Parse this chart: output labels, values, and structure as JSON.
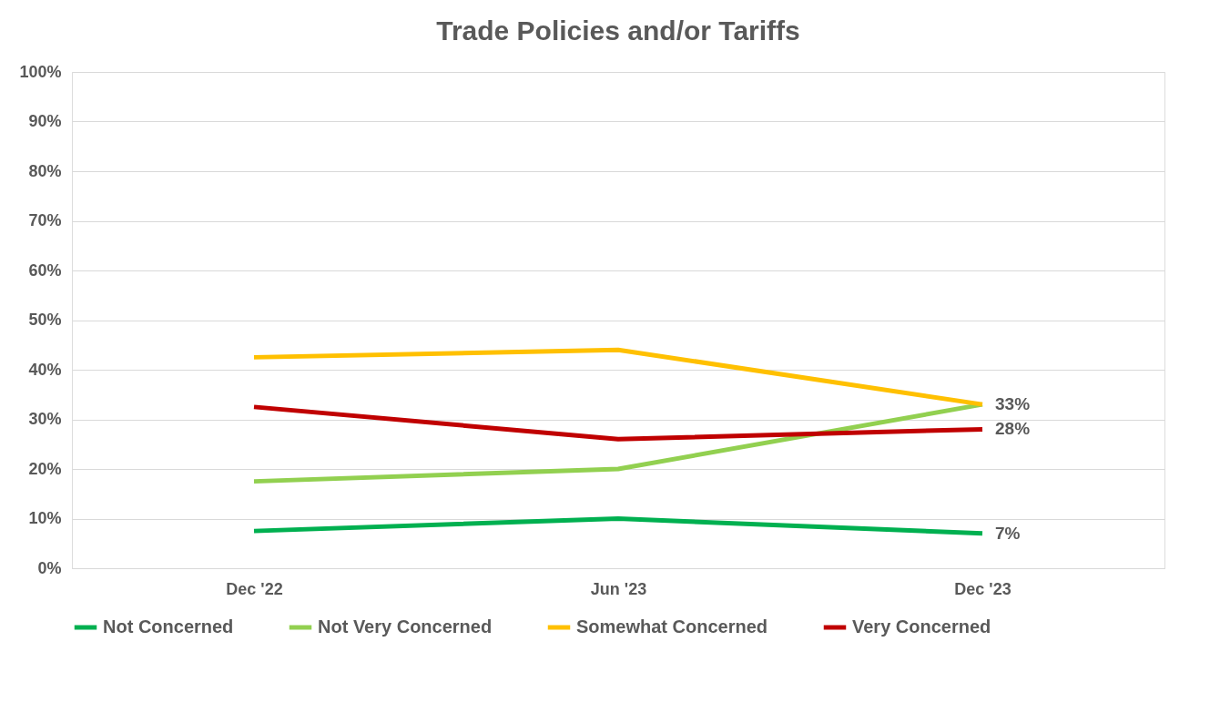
{
  "chart_data": {
    "type": "line",
    "title": "Trade Policies and/or Tariffs",
    "categories": [
      "Dec '22",
      "Jun '23",
      "Dec '23"
    ],
    "series": [
      {
        "name": "Not Concerned",
        "color": "#00b050",
        "values": [
          7.5,
          10,
          7
        ],
        "value_labels": [
          null,
          null,
          "7%"
        ]
      },
      {
        "name": "Not Very Concerned",
        "color": "#92d050",
        "values": [
          17.5,
          20,
          33
        ],
        "value_labels": [
          null,
          null,
          null
        ]
      },
      {
        "name": "Somewhat Concerned",
        "color": "#ffc000",
        "values": [
          42.5,
          44,
          33
        ],
        "value_labels": [
          null,
          null,
          "33%"
        ]
      },
      {
        "name": "Very Concerned",
        "color": "#c00000",
        "values": [
          32.5,
          26,
          28
        ],
        "value_labels": [
          null,
          null,
          "28%"
        ]
      }
    ],
    "ylim": [
      0,
      100
    ],
    "yticks": [
      {
        "value": 0,
        "label": "0%"
      },
      {
        "value": 10,
        "label": "10%"
      },
      {
        "value": 20,
        "label": "20%"
      },
      {
        "value": 30,
        "label": "30%"
      },
      {
        "value": 40,
        "label": "40%"
      },
      {
        "value": 50,
        "label": "50%"
      },
      {
        "value": 60,
        "label": "60%"
      },
      {
        "value": 70,
        "label": "70%"
      },
      {
        "value": 80,
        "label": "80%"
      },
      {
        "value": 90,
        "label": "90%"
      },
      {
        "value": 100,
        "label": "100%"
      }
    ],
    "grid": "y",
    "legend": "bottom",
    "marker": "none",
    "line_style": "solid"
  }
}
